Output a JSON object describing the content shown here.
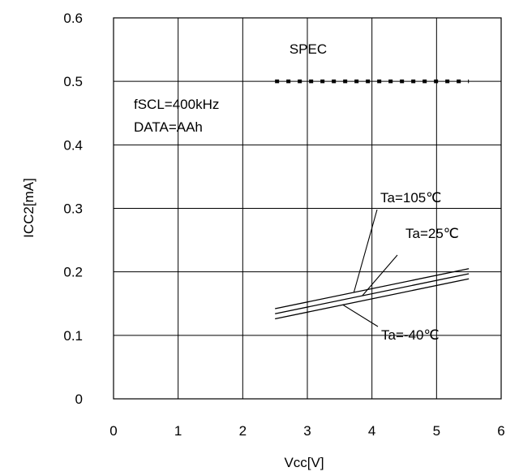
{
  "chart_data": {
    "type": "line",
    "title": "",
    "xlabel": "Vcc[V]",
    "ylabel": "ICC2[mA]",
    "xlim": [
      0,
      6
    ],
    "ylim": [
      0,
      0.6
    ],
    "xticks": [
      "0",
      "1",
      "2",
      "3",
      "4",
      "5",
      "6"
    ],
    "yticks": [
      "0",
      "0.1",
      "0.2",
      "0.3",
      "0.4",
      "0.5",
      "0.6"
    ],
    "grid": true,
    "series": [
      {
        "name": "Ta=105℃",
        "x": [
          2.5,
          5.5
        ],
        "y": [
          0.142,
          0.205
        ]
      },
      {
        "name": "Ta=25℃",
        "x": [
          2.5,
          5.5
        ],
        "y": [
          0.134,
          0.197
        ]
      },
      {
        "name": "Ta=-40℃",
        "x": [
          2.5,
          5.5
        ],
        "y": [
          0.126,
          0.189
        ]
      }
    ],
    "spec": {
      "label": "SPEC",
      "x": [
        2.5,
        5.5
      ],
      "y": 0.5
    },
    "conditions": [
      "fSCL=400kHz",
      "DATA=AAh"
    ],
    "colors": {
      "line": "#000000",
      "grid": "#000000",
      "background": "#ffffff"
    }
  }
}
